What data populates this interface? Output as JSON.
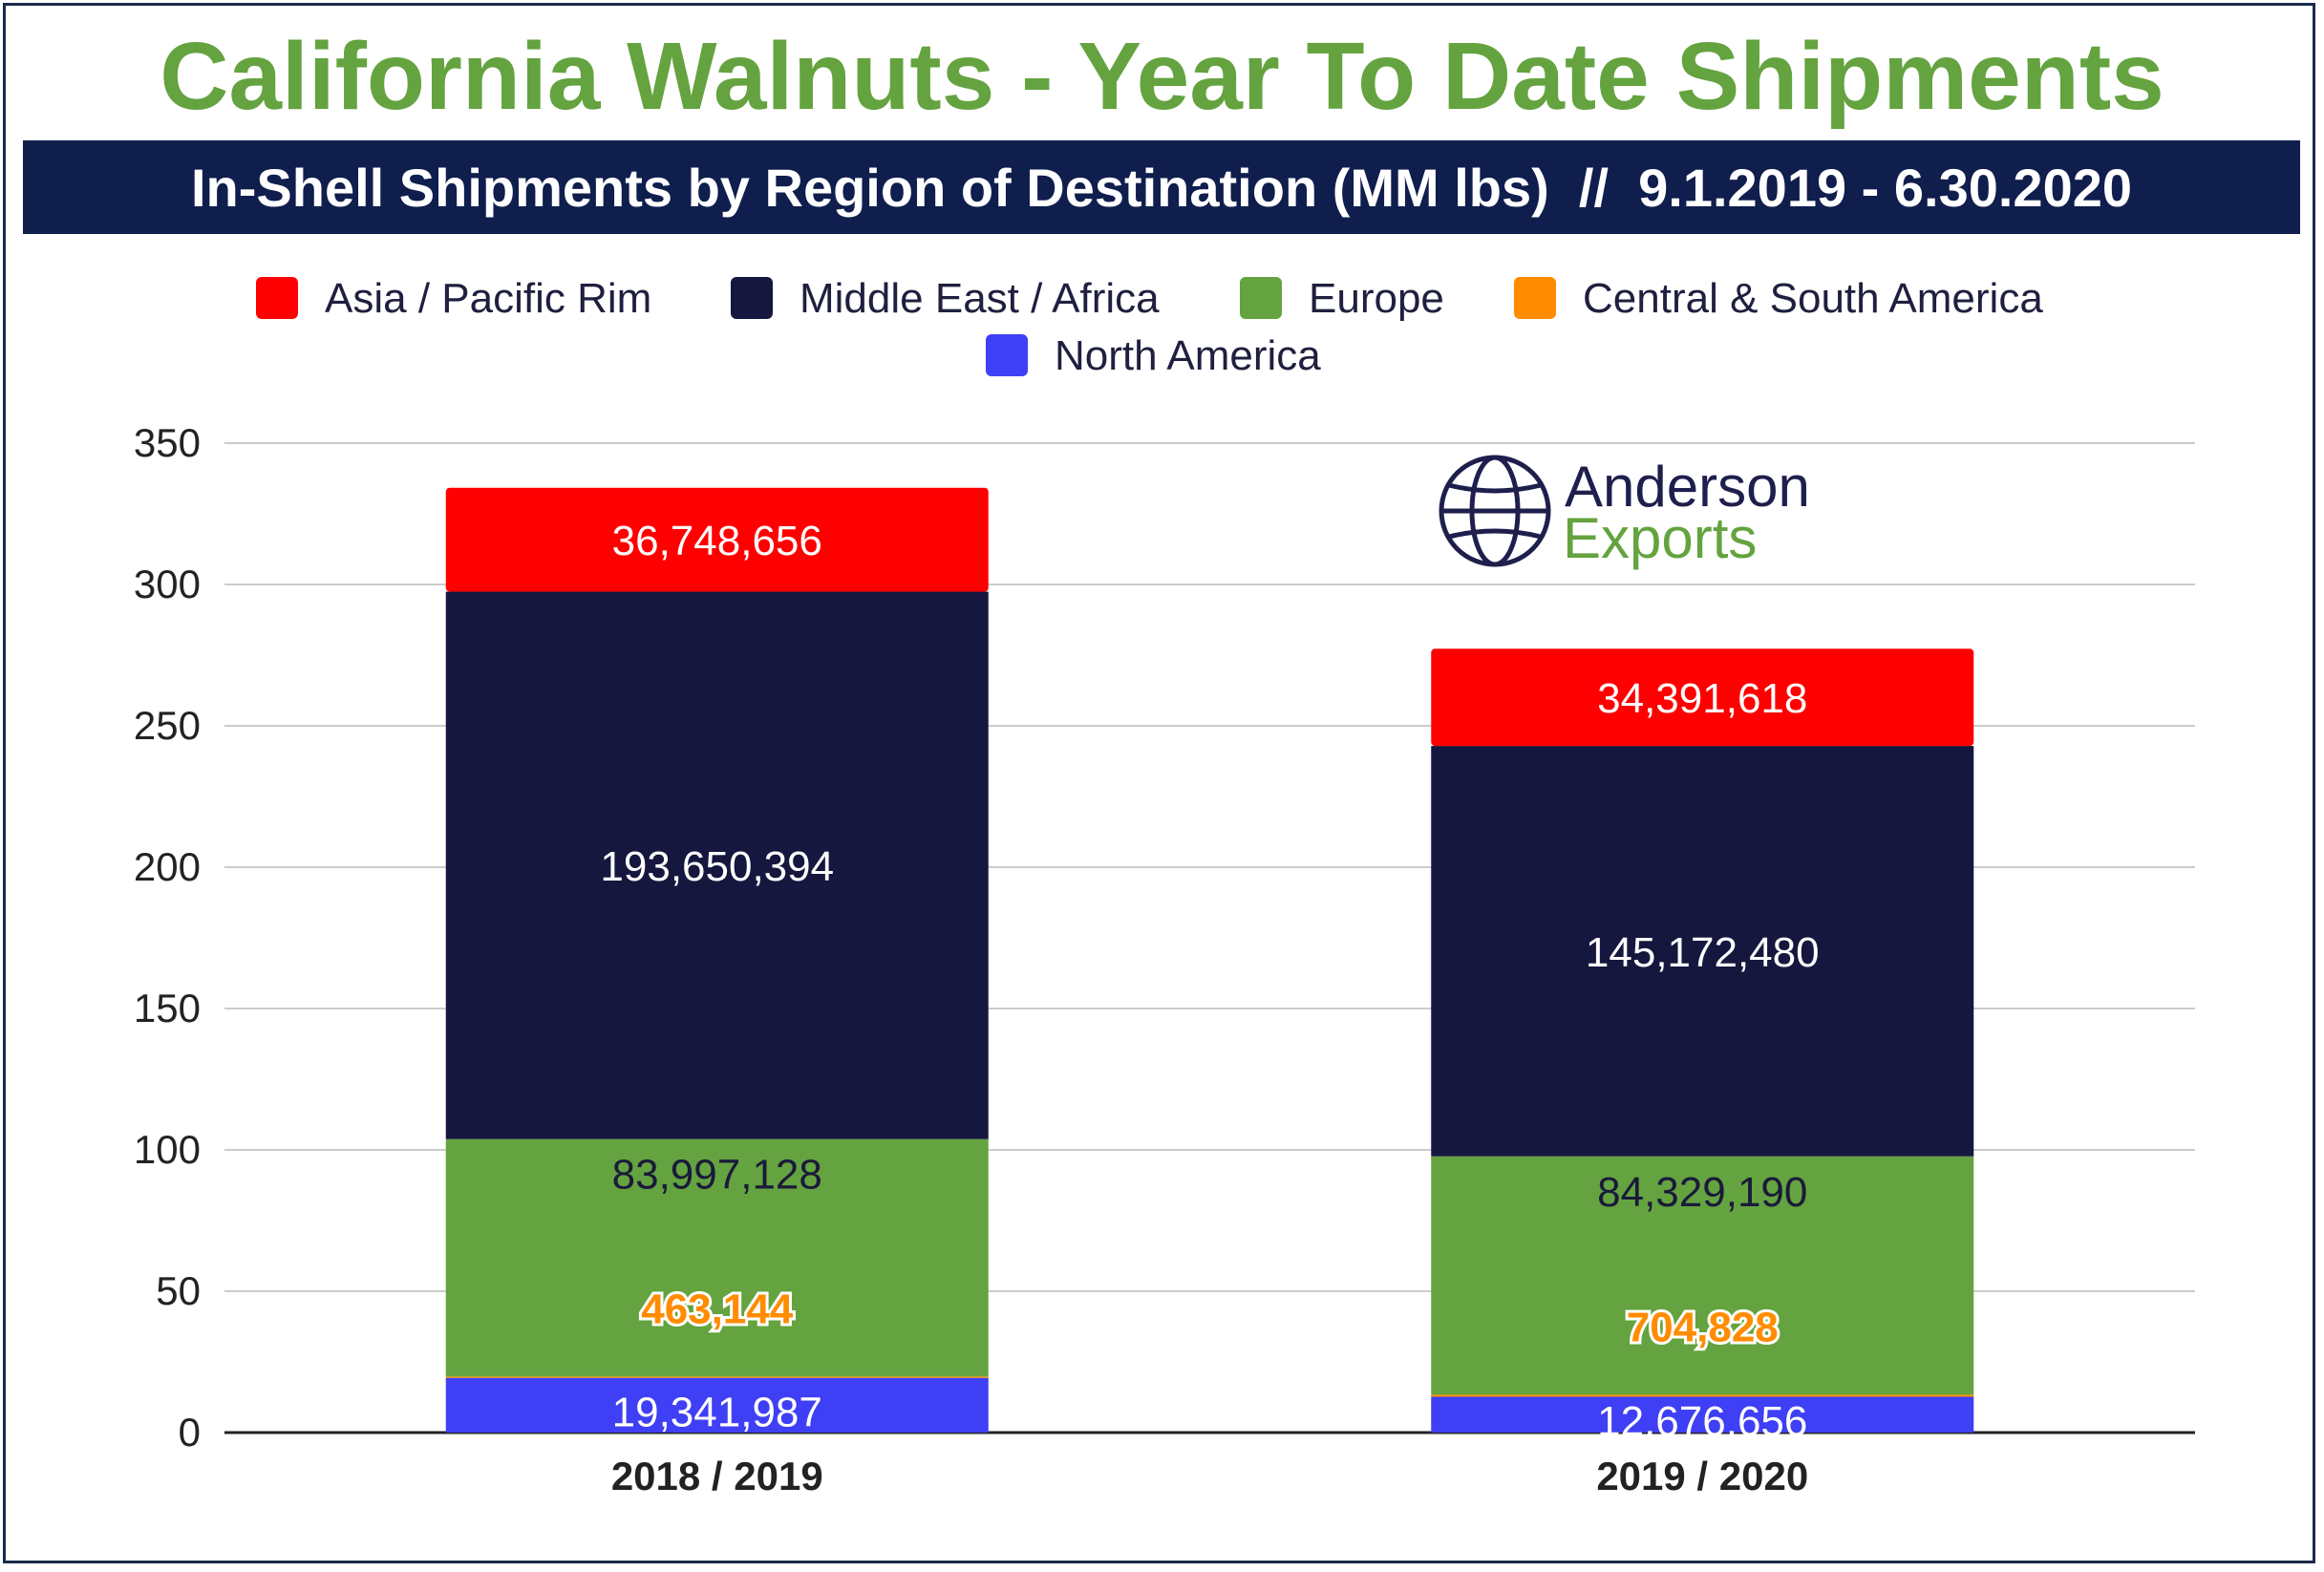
{
  "title": "California Walnuts - Year To Date Shipments",
  "subtitle": "In-Shell Shipments by Region of Destination (MM lbs)  //  9.1.2019 - 6.30.2020",
  "logo": {
    "line1": "Anderson",
    "line2": "Exports",
    "icon": "globe-icon",
    "color1": "#1f1f4d",
    "color2": "#64a33f"
  },
  "colors": {
    "title": "#64a33f",
    "banner": "#0f1e4d",
    "grid": "#cccccc"
  },
  "chart_data": {
    "type": "bar",
    "stacked": true,
    "categories": [
      "2018 / 2019",
      "2019 / 2020"
    ],
    "ylim": [
      0,
      350
    ],
    "yticks": [
      0,
      50,
      100,
      150,
      200,
      250,
      300,
      350
    ],
    "grid": true,
    "legend_position": "top",
    "series": [
      {
        "name": "North America",
        "color": "#3f3ff5",
        "values": [
          19.341987,
          12.676656
        ],
        "labels": [
          "19,341,987",
          "12,676,656"
        ],
        "label_color": "#ffffff"
      },
      {
        "name": "Central & South America",
        "color": "#ff8c00",
        "values": [
          0.463144,
          0.704828
        ],
        "labels": [
          "463,144",
          "704,828"
        ],
        "label_color": "#ff8c00"
      },
      {
        "name": "Europe",
        "color": "#64a33f",
        "values": [
          83.997128,
          84.32919
        ],
        "labels": [
          "83,997,128",
          "84,329,190"
        ],
        "label_color": "#1a1a3a"
      },
      {
        "name": "Middle East / Africa",
        "color": "#15173e",
        "values": [
          193.650394,
          145.17248
        ],
        "labels": [
          "193,650,394",
          "145,172,480"
        ],
        "label_color": "#ffffff"
      },
      {
        "name": "Asia / Pacific Rim",
        "color": "#ff0000",
        "values": [
          36.748656,
          34.391618
        ],
        "labels": [
          "36,748,656",
          "34,391,618"
        ],
        "label_color": "#ffffff"
      }
    ],
    "legend_order": [
      "Asia / Pacific Rim",
      "Middle East / Africa",
      "Europe",
      "Central & South America",
      "North America"
    ]
  }
}
